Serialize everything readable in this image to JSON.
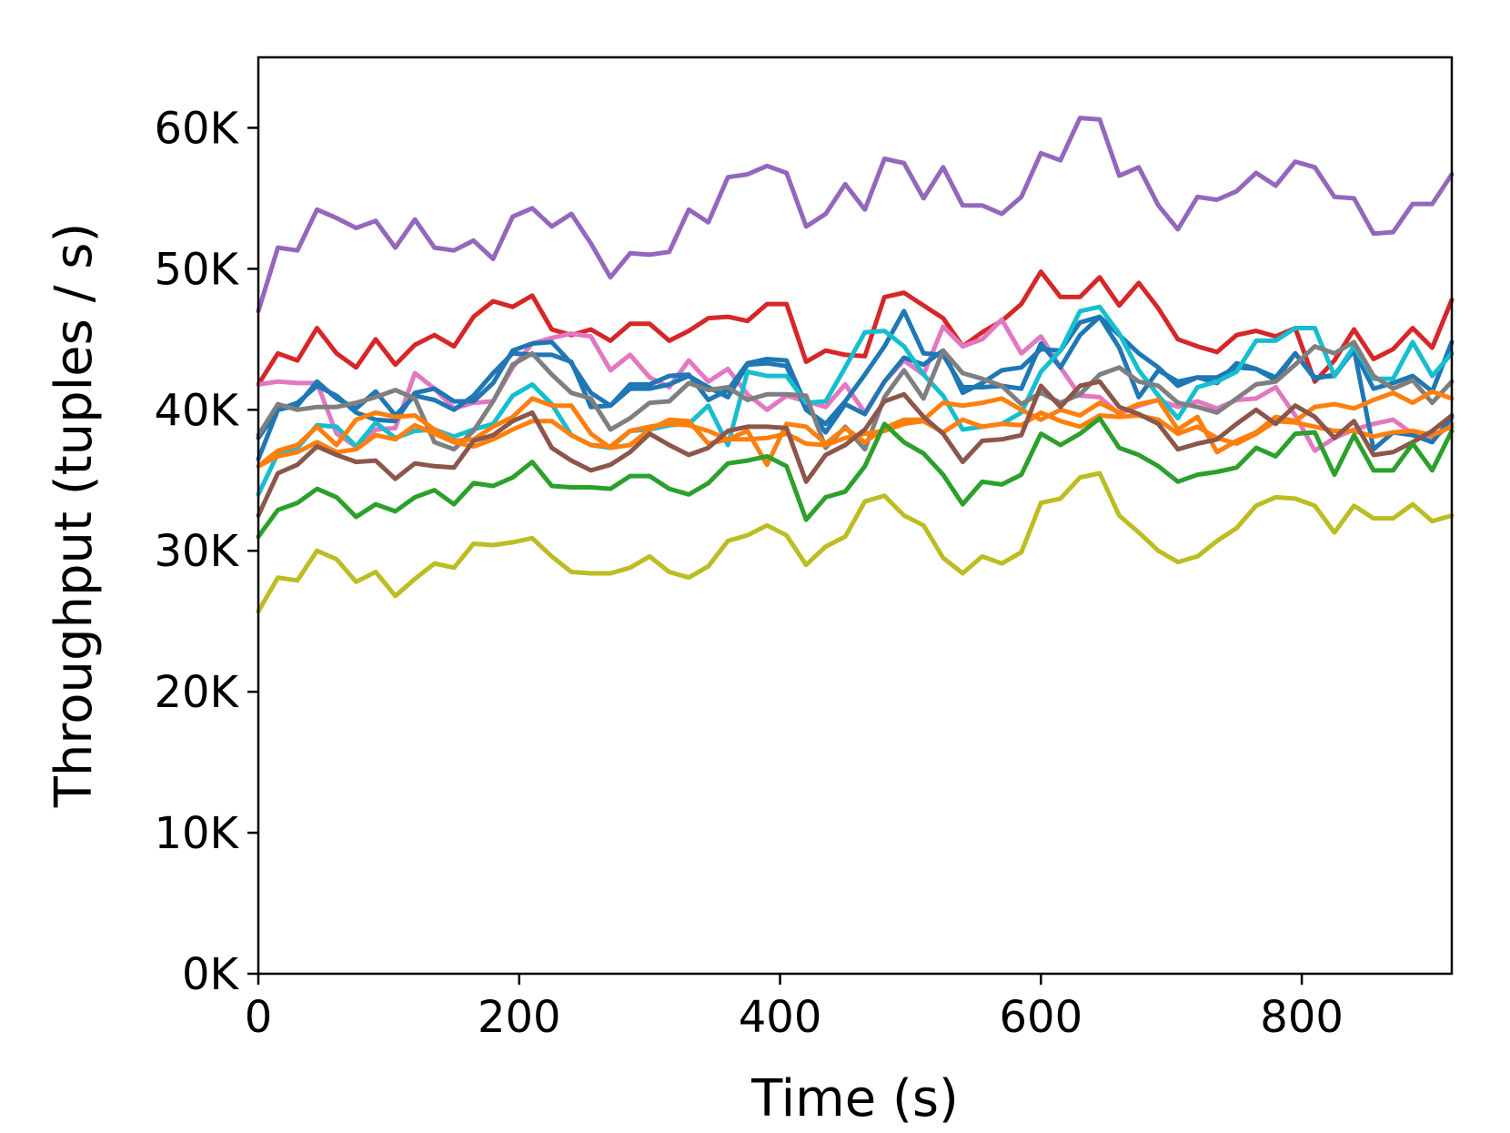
{
  "chart_data": {
    "type": "line",
    "title": "",
    "xlabel": "Time (s)",
    "ylabel": "Throughput (tuples / s)",
    "xlim": [
      0,
      915
    ],
    "ylim": [
      0,
      65000
    ],
    "grid": false,
    "legend": "none",
    "x_ticks": [
      {
        "value": 0,
        "label": "0"
      },
      {
        "value": 200,
        "label": "200"
      },
      {
        "value": 400,
        "label": "400"
      },
      {
        "value": 600,
        "label": "600"
      },
      {
        "value": 800,
        "label": "800"
      }
    ],
    "y_ticks": [
      {
        "value": 0,
        "label": "0K"
      },
      {
        "value": 10000,
        "label": "10K"
      },
      {
        "value": 20000,
        "label": "20K"
      },
      {
        "value": 30000,
        "label": "30K"
      },
      {
        "value": 40000,
        "label": "40K"
      },
      {
        "value": 50000,
        "label": "50K"
      },
      {
        "value": 60000,
        "label": "60K"
      }
    ],
    "x": [
      0,
      15,
      30,
      45,
      60,
      75,
      90,
      105,
      120,
      135,
      150,
      165,
      180,
      195,
      210,
      225,
      240,
      255,
      270,
      285,
      300,
      315,
      330,
      345,
      360,
      375,
      390,
      405,
      420,
      435,
      450,
      465,
      480,
      495,
      510,
      525,
      540,
      555,
      570,
      585,
      600,
      615,
      630,
      645,
      660,
      675,
      690,
      705,
      720,
      735,
      750,
      765,
      780,
      795,
      810,
      825,
      840,
      855,
      870,
      885,
      900,
      915
    ],
    "series": [
      {
        "color": "#9467bd",
        "values": [
          47000,
          51500,
          51300,
          54200,
          53600,
          52900,
          53400,
          51500,
          53500,
          51500,
          51300,
          52000,
          50700,
          53700,
          54300,
          53000,
          53900,
          51800,
          49400,
          51100,
          51000,
          51200,
          54200,
          53300,
          56500,
          56700,
          57300,
          56800,
          53000,
          53900,
          56000,
          54200,
          57800,
          57500,
          55000,
          57200,
          54500,
          54500,
          53900,
          55100,
          58200,
          57700,
          60700,
          60600,
          56600,
          57200,
          54500,
          52800,
          55100,
          54900,
          55500,
          56800,
          55900,
          57600,
          57200,
          55100,
          55000,
          52500,
          52600,
          54600,
          54600,
          56700
        ]
      },
      {
        "color": "#d62728",
        "values": [
          41800,
          44000,
          43500,
          45800,
          44000,
          43000,
          45000,
          43200,
          44600,
          45300,
          44500,
          46600,
          47700,
          47300,
          48100,
          45700,
          45300,
          45700,
          44900,
          46100,
          46100,
          44900,
          45600,
          46500,
          46600,
          46300,
          47500,
          47500,
          43400,
          44200,
          43900,
          43800,
          48000,
          48300,
          47400,
          46500,
          44500,
          45500,
          46300,
          47500,
          49800,
          48000,
          48000,
          49400,
          47400,
          49000,
          47200,
          45000,
          44500,
          44100,
          45300,
          45600,
          45200,
          45800,
          42000,
          43500,
          45700,
          43600,
          44300,
          45800,
          44400,
          47800
        ]
      },
      {
        "color": "#e377c2",
        "values": [
          41800,
          42000,
          41900,
          41900,
          38300,
          37400,
          38600,
          38700,
          42600,
          41500,
          40100,
          40500,
          40600,
          43000,
          44700,
          45100,
          45400,
          45200,
          42800,
          43900,
          42300,
          41600,
          43500,
          42000,
          42900,
          41100,
          40000,
          41000,
          40600,
          40200,
          41800,
          39800,
          42000,
          43500,
          42500,
          45900,
          44500,
          45000,
          46400,
          44000,
          45200,
          43000,
          41000,
          40900,
          39700,
          40300,
          40700,
          40200,
          40600,
          40100,
          40700,
          40800,
          41600,
          39600,
          37100,
          38000,
          38600,
          39000,
          39300,
          38300,
          37900,
          39000
        ]
      },
      {
        "color": "#1f77b4",
        "values": [
          36500,
          40000,
          40300,
          42000,
          40800,
          40100,
          41300,
          39600,
          41000,
          40700,
          40000,
          41000,
          42600,
          44000,
          43900,
          43900,
          43400,
          40200,
          40300,
          41500,
          41500,
          41800,
          42400,
          41600,
          40900,
          43200,
          43300,
          43100,
          40000,
          39000,
          40600,
          42500,
          44500,
          47000,
          44000,
          43900,
          41600,
          41600,
          41700,
          41500,
          44700,
          43000,
          45300,
          46600,
          45300,
          44000,
          43000,
          41700,
          42300,
          42300,
          43000,
          42900,
          42300,
          44000,
          42200,
          42500,
          44200,
          41500,
          41900,
          42400,
          41300,
          44800
        ]
      },
      {
        "color": "#1f77b4",
        "values": [
          38000,
          40000,
          40500,
          41700,
          41000,
          39800,
          39300,
          39200,
          41200,
          41500,
          40600,
          40600,
          41900,
          44200,
          44700,
          44800,
          43300,
          41200,
          40300,
          41800,
          41800,
          42400,
          42500,
          40700,
          41400,
          43300,
          43600,
          43500,
          40300,
          38400,
          40400,
          39700,
          42000,
          43700,
          43200,
          44200,
          41200,
          41900,
          42800,
          43000,
          44300,
          44200,
          46200,
          46600,
          44400,
          40900,
          42800,
          42000,
          42300,
          41900,
          43300,
          42900,
          42100,
          44000,
          42300,
          42400,
          44300,
          37200,
          38400,
          38200,
          37700,
          39500
        ]
      },
      {
        "color": "#17becf",
        "values": [
          34000,
          36900,
          37300,
          38900,
          38800,
          37400,
          39100,
          38000,
          38500,
          38600,
          38100,
          38600,
          39000,
          41000,
          41800,
          40400,
          38200,
          37500,
          37300,
          38500,
          38600,
          38900,
          39000,
          40300,
          37500,
          42700,
          42400,
          42400,
          40500,
          40600,
          43000,
          45500,
          45600,
          44500,
          42500,
          41000,
          38600,
          38800,
          39000,
          39800,
          42700,
          44200,
          47000,
          47300,
          45400,
          42800,
          41000,
          39400,
          41600,
          42000,
          42700,
          44900,
          44900,
          45800,
          45800,
          42400,
          44500,
          42200,
          42200,
          44800,
          42400,
          44000
        ]
      },
      {
        "color": "#7f7f7f",
        "values": [
          38200,
          40400,
          40000,
          40200,
          40200,
          40500,
          40900,
          41400,
          40800,
          37700,
          37200,
          38500,
          40600,
          43200,
          44000,
          42500,
          41200,
          40800,
          38600,
          39400,
          40500,
          40600,
          41900,
          41400,
          41600,
          40700,
          41100,
          41100,
          41000,
          37300,
          38800,
          37200,
          40900,
          42800,
          40800,
          44200,
          42600,
          42200,
          41700,
          40400,
          41200,
          40500,
          41100,
          42500,
          43000,
          42000,
          41700,
          40500,
          40200,
          39800,
          40800,
          41800,
          42000,
          43200,
          44500,
          44000,
          44800,
          42400,
          41500,
          42100,
          40500,
          42000
        ]
      },
      {
        "color": "#ff7f0e",
        "values": [
          36000,
          37100,
          37500,
          38800,
          37500,
          39300,
          39800,
          39500,
          39600,
          38600,
          37800,
          37900,
          38800,
          39500,
          40800,
          40300,
          40300,
          38300,
          37300,
          37500,
          38600,
          39300,
          39200,
          37600,
          37900,
          38500,
          36100,
          39000,
          38800,
          37600,
          38700,
          37700,
          38700,
          39300,
          39300,
          40500,
          40300,
          40500,
          40800,
          40000,
          39300,
          40000,
          39600,
          40500,
          39800,
          40400,
          40700,
          38600,
          39500,
          37000,
          37800,
          38400,
          39500,
          39200,
          40200,
          40400,
          40100,
          40700,
          41200,
          40500,
          41300,
          40800
        ]
      },
      {
        "color": "#ff7f0e",
        "values": [
          36000,
          36700,
          37000,
          37700,
          37000,
          37200,
          38200,
          37900,
          38900,
          38300,
          37700,
          37400,
          37900,
          38600,
          39200,
          39200,
          38200,
          37500,
          37400,
          38500,
          38800,
          39000,
          38900,
          38500,
          37900,
          37900,
          38000,
          38300,
          37600,
          37500,
          38000,
          38300,
          38500,
          39000,
          39200,
          38400,
          39300,
          38800,
          39000,
          38900,
          39800,
          39200,
          38800,
          39600,
          39500,
          39600,
          39300,
          38300,
          38800,
          38000,
          37600,
          38300,
          39200,
          39100,
          38800,
          38500,
          38500,
          38100,
          38400,
          38500,
          38200,
          38800
        ]
      },
      {
        "color": "#8c564b",
        "values": [
          32500,
          35500,
          36100,
          37400,
          36800,
          36300,
          36400,
          35100,
          36200,
          36000,
          35900,
          37800,
          38200,
          39200,
          39800,
          37300,
          36400,
          35700,
          36100,
          37000,
          38300,
          37500,
          36800,
          37300,
          38500,
          38800,
          38800,
          38700,
          34900,
          36800,
          37500,
          38600,
          40600,
          41100,
          39500,
          38300,
          36300,
          37800,
          37900,
          38200,
          41700,
          40200,
          41700,
          42000,
          40200,
          39700,
          39000,
          37200,
          37600,
          37900,
          39000,
          40000,
          39000,
          40300,
          39500,
          38000,
          39200,
          36800,
          37000,
          37700,
          38500,
          39600
        ]
      },
      {
        "color": "#2ca02c",
        "values": [
          31000,
          32900,
          33400,
          34400,
          33800,
          32400,
          33300,
          32800,
          33800,
          34300,
          33300,
          34800,
          34600,
          35200,
          36300,
          34600,
          34500,
          34500,
          34400,
          35300,
          35300,
          34400,
          34000,
          34800,
          36200,
          36400,
          36700,
          36000,
          32200,
          33800,
          34200,
          36000,
          39000,
          37700,
          36900,
          35400,
          33300,
          34900,
          34700,
          35400,
          38300,
          37500,
          38300,
          39400,
          37300,
          36800,
          36000,
          34900,
          35400,
          35600,
          35900,
          37300,
          36700,
          38300,
          38400,
          35400,
          38200,
          35700,
          35700,
          37600,
          35700,
          38500
        ]
      },
      {
        "color": "#bcbd22",
        "values": [
          25700,
          28100,
          27900,
          30000,
          29400,
          27800,
          28500,
          26800,
          28000,
          29100,
          28800,
          30500,
          30400,
          30600,
          30900,
          29600,
          28500,
          28400,
          28400,
          28800,
          29600,
          28500,
          28100,
          28900,
          30700,
          31100,
          31800,
          31100,
          29000,
          30300,
          31000,
          33500,
          33900,
          32500,
          31800,
          29500,
          28400,
          29600,
          29100,
          29900,
          33400,
          33700,
          35200,
          35500,
          32500,
          31300,
          30000,
          29200,
          29600,
          30700,
          31600,
          33200,
          33800,
          33700,
          33200,
          31300,
          33200,
          32300,
          32300,
          33300,
          32100,
          32500
        ]
      }
    ]
  }
}
